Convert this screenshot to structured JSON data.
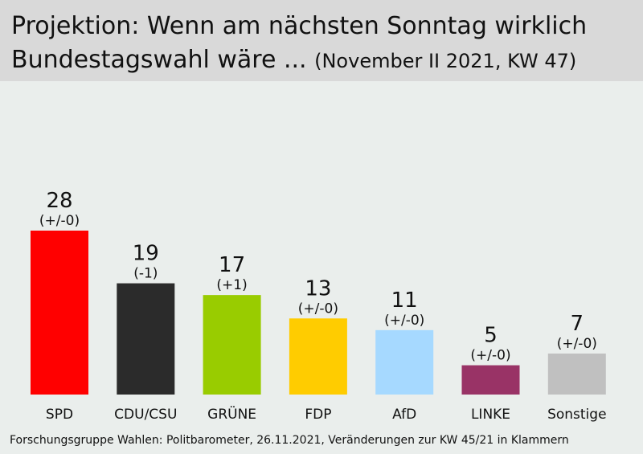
{
  "header": {
    "title_line1": "Projektion: Wenn am nächsten Sonntag wirklich",
    "title_line2": "Bundestagswahl wäre ...",
    "subtitle": "(November II 2021, KW 47)"
  },
  "chart_data": {
    "type": "bar",
    "categories": [
      "SPD",
      "CDU/CSU",
      "GRÜNE",
      "FDP",
      "AfD",
      "LINKE",
      "Sonstige"
    ],
    "values": [
      28,
      19,
      17,
      13,
      11,
      5,
      7
    ],
    "changes": [
      "(+/-0)",
      "(-1)",
      "(+1)",
      "(+/-0)",
      "(+/-0)",
      "(+/-0)",
      "(+/-0)"
    ],
    "colors": [
      "#ff0000",
      "#2b2b2b",
      "#99cc00",
      "#ffcc00",
      "#a6d9ff",
      "#993366",
      "#c0c0c0"
    ],
    "ylim": [
      0,
      28
    ],
    "grid": false,
    "legend": "none"
  },
  "footer": {
    "source": "Forschungsgruppe  Wahlen: Politbarometer, 26.11.2021, Veränderungen zur KW 45/21 in Klammern"
  }
}
